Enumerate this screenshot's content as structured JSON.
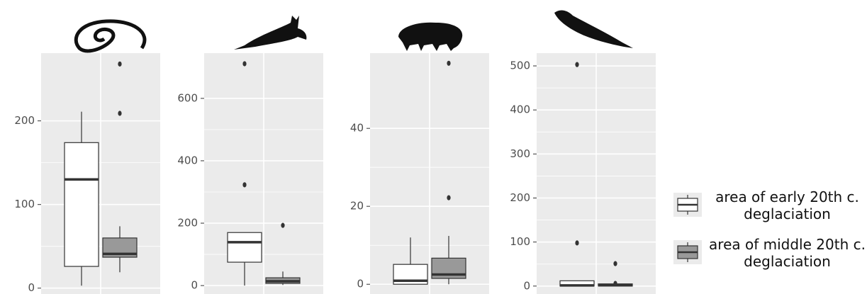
{
  "legend": {
    "entries": [
      {
        "name": "area of early 20th c. deglaciation",
        "color": "#ffffff"
      },
      {
        "name": "area of middle 20th c. deglaciation",
        "color": "#999999"
      }
    ]
  },
  "chart_data": [
    {
      "type": "box",
      "ylim": [
        -7,
        281
      ],
      "yticks": [
        0,
        100,
        200
      ],
      "boxes": [
        {
          "whislo": 3,
          "q1": 26,
          "med": 130,
          "q3": 174,
          "whishi": 211,
          "fliers": []
        },
        {
          "whislo": 19,
          "q1": 37,
          "med": 41,
          "q3": 60,
          "whishi": 74,
          "fliers": [
            209,
            268
          ]
        }
      ]
    },
    {
      "type": "box",
      "ylim": [
        -27,
        745
      ],
      "yticks": [
        0,
        200,
        400,
        600
      ],
      "boxes": [
        {
          "whislo": 0,
          "q1": 75,
          "med": 139,
          "q3": 170,
          "whishi": 170,
          "fliers": [
            323,
            711
          ]
        },
        {
          "whislo": 2,
          "q1": 7,
          "med": 14,
          "q3": 25,
          "whishi": 45,
          "fliers": [
            193
          ]
        }
      ]
    },
    {
      "type": "box",
      "ylim": [
        -2.5,
        59.3
      ],
      "yticks": [
        0,
        20,
        40
      ],
      "boxes": [
        {
          "whislo": 0,
          "q1": 0,
          "med": 0.9,
          "q3": 5.1,
          "whishi": 12,
          "fliers": []
        },
        {
          "whislo": 0,
          "q1": 1.5,
          "med": 2.5,
          "q3": 6.7,
          "whishi": 12.4,
          "fliers": [
            22.2,
            56.7
          ]
        }
      ]
    },
    {
      "type": "box",
      "ylim": [
        -18,
        529
      ],
      "yticks": [
        0,
        100,
        200,
        300,
        400,
        500
      ],
      "boxes": [
        {
          "whislo": 0,
          "q1": 0,
          "med": 1.6,
          "q3": 12,
          "whishi": 12,
          "fliers": [
            98,
            503
          ]
        },
        {
          "whislo": 0,
          "q1": 0,
          "med": 2,
          "q3": 5,
          "whishi": 5,
          "fliers": [
            6,
            51
          ]
        }
      ]
    }
  ]
}
